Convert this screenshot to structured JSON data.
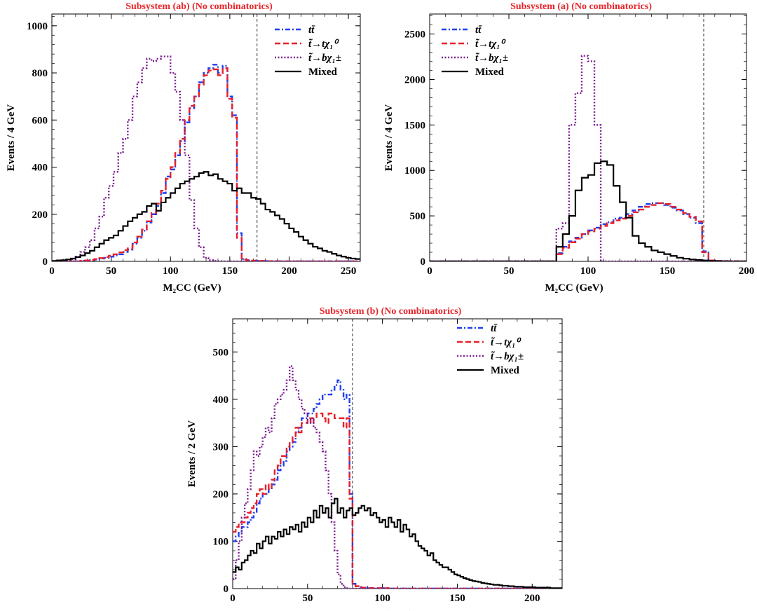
{
  "series_styles": [
    {
      "key": "tt",
      "label": "tt̄",
      "color": "#1f3ff0",
      "dash": "7,3,2,3"
    },
    {
      "key": "stop_chi0",
      "label": "t̃→tχ₁⁰",
      "color": "#e8202a",
      "dash": "8,4"
    },
    {
      "key": "stop_chipm",
      "label": "t̃→bχ₁±",
      "color": "#7b1d8f",
      "dash": "2,2.5"
    },
    {
      "key": "mixed",
      "label": "Mixed",
      "color": "#000000",
      "dash": ""
    }
  ],
  "chart_data": [
    {
      "type": "line",
      "title": "Subsystem (ab) (No combinatorics)",
      "xlabel": "M₂CC (GeV)",
      "ylabel": "Events / 4 GeV",
      "xlim": [
        0,
        260
      ],
      "ylim": [
        0,
        1050
      ],
      "xticks": [
        0,
        50,
        100,
        150,
        200,
        250
      ],
      "yticks": [
        0,
        200,
        400,
        600,
        800,
        1000
      ],
      "bin_width": 4,
      "endpoint": 173,
      "legend": "top-right",
      "series": [
        {
          "name": "tt̄",
          "values": [
            0,
            0,
            0,
            0,
            0,
            0,
            2,
            3,
            5,
            8,
            12,
            15,
            20,
            25,
            30,
            40,
            50,
            75,
            100,
            130,
            165,
            200,
            235,
            290,
            360,
            390,
            450,
            510,
            590,
            650,
            700,
            760,
            800,
            820,
            835,
            800,
            830,
            700,
            620,
            120,
            10,
            5,
            3,
            2,
            2,
            1,
            1,
            1,
            0,
            0,
            0,
            0,
            0,
            0,
            0,
            0,
            0,
            0,
            0,
            0,
            0,
            0,
            0,
            0,
            0
          ]
        },
        {
          "name": "t̃→tχ₁⁰",
          "values": [
            0,
            0,
            0,
            0,
            0,
            0,
            2,
            4,
            7,
            10,
            14,
            18,
            24,
            30,
            38,
            48,
            55,
            80,
            105,
            135,
            170,
            205,
            245,
            300,
            350,
            400,
            460,
            520,
            600,
            660,
            700,
            750,
            790,
            810,
            815,
            790,
            820,
            690,
            610,
            100,
            8,
            5,
            3,
            2,
            2,
            1,
            1,
            1,
            0,
            0,
            0,
            0,
            0,
            0,
            0,
            0,
            0,
            0,
            0,
            0,
            0,
            0,
            0,
            0,
            0
          ]
        },
        {
          "name": "t̃→bχ₁±",
          "values": [
            0,
            1,
            2,
            5,
            10,
            20,
            40,
            60,
            90,
            140,
            190,
            270,
            320,
            380,
            460,
            520,
            600,
            700,
            760,
            820,
            860,
            850,
            860,
            870,
            870,
            800,
            720,
            600,
            450,
            260,
            140,
            60,
            15,
            5,
            2,
            1,
            0,
            0,
            0,
            0,
            0,
            0,
            0,
            0,
            0,
            0,
            0,
            0,
            0,
            0,
            0,
            0,
            0,
            0,
            0,
            0,
            0,
            0,
            0,
            0,
            0,
            0,
            0,
            0,
            0
          ]
        },
        {
          "name": "Mixed",
          "values": [
            2,
            4,
            5,
            8,
            12,
            18,
            25,
            35,
            45,
            60,
            75,
            90,
            100,
            110,
            130,
            150,
            170,
            185,
            200,
            210,
            235,
            245,
            215,
            250,
            270,
            290,
            310,
            330,
            340,
            350,
            360,
            375,
            380,
            365,
            370,
            350,
            340,
            330,
            300,
            310,
            290,
            290,
            270,
            265,
            245,
            220,
            210,
            195,
            180,
            160,
            140,
            125,
            105,
            90,
            75,
            62,
            55,
            45,
            40,
            32,
            25,
            20,
            15,
            12,
            10
          ]
        }
      ]
    },
    {
      "type": "line",
      "title": "Subsystem (a) (No combinatorics)",
      "xlabel": "M₂CC (GeV)",
      "ylabel": "Events / 4 GeV",
      "xlim": [
        0,
        200
      ],
      "ylim": [
        0,
        2720
      ],
      "xticks": [
        0,
        50,
        100,
        150,
        200
      ],
      "yticks": [
        0,
        500,
        1000,
        1500,
        2000,
        2500
      ],
      "bin_width": 4,
      "endpoint": 173,
      "legend": "top-left",
      "series": [
        {
          "name": "tt̄",
          "values": [
            0,
            0,
            0,
            0,
            0,
            0,
            0,
            0,
            0,
            0,
            0,
            0,
            0,
            0,
            0,
            0,
            0,
            0,
            0,
            0,
            90,
            160,
            220,
            260,
            300,
            340,
            370,
            410,
            430,
            470,
            480,
            520,
            560,
            600,
            630,
            640,
            640,
            620,
            590,
            560,
            520,
            480,
            420,
            110,
            10,
            5,
            3,
            2,
            1,
            0
          ]
        },
        {
          "name": "t̃→tχ₁⁰",
          "values": [
            0,
            0,
            0,
            0,
            0,
            0,
            0,
            0,
            0,
            0,
            0,
            0,
            0,
            0,
            0,
            0,
            0,
            0,
            0,
            0,
            80,
            150,
            210,
            250,
            300,
            330,
            360,
            390,
            420,
            450,
            470,
            500,
            540,
            570,
            600,
            620,
            640,
            630,
            600,
            570,
            530,
            490,
            440,
            100,
            10,
            5,
            3,
            2,
            1,
            0
          ]
        },
        {
          "name": "t̃→bχ₁±",
          "values": [
            0,
            0,
            0,
            0,
            0,
            0,
            0,
            0,
            0,
            0,
            0,
            0,
            0,
            0,
            0,
            0,
            0,
            0,
            0,
            0,
            360,
            420,
            1500,
            1850,
            2260,
            2200,
            1500,
            0,
            0,
            0,
            0,
            0,
            0,
            0,
            0,
            0,
            0,
            0,
            0,
            0,
            0,
            0,
            0,
            0,
            0,
            0,
            0,
            0,
            0,
            0
          ]
        },
        {
          "name": "Mixed",
          "values": [
            0,
            0,
            0,
            0,
            0,
            0,
            0,
            0,
            0,
            0,
            0,
            0,
            0,
            0,
            0,
            0,
            0,
            0,
            0,
            0,
            160,
            300,
            500,
            780,
            920,
            950,
            1080,
            1100,
            1060,
            830,
            650,
            480,
            280,
            200,
            160,
            120,
            100,
            80,
            60,
            40,
            30,
            20,
            15,
            10,
            5,
            2,
            0,
            0,
            0,
            0
          ]
        }
      ]
    },
    {
      "type": "line",
      "title": "Subsystem (b) (No combinatorics)",
      "xlabel": "M₂CC (GeV)",
      "ylabel": "Events / 2 GeV",
      "xlim": [
        0,
        220
      ],
      "ylim": [
        0,
        570
      ],
      "xticks": [
        0,
        50,
        100,
        150,
        200
      ],
      "yticks": [
        0,
        100,
        200,
        300,
        400,
        500
      ],
      "bin_width": 2,
      "endpoint": 80,
      "legend": "top-right",
      "series": [
        {
          "name": "tt̄",
          "values": [
            100,
            110,
            120,
            130,
            130,
            140,
            150,
            160,
            180,
            190,
            200,
            200,
            210,
            220,
            230,
            250,
            260,
            270,
            290,
            300,
            310,
            330,
            340,
            360,
            360,
            370,
            370,
            380,
            390,
            400,
            410,
            410,
            410,
            420,
            430,
            440,
            420,
            400,
            410,
            200,
            10,
            5,
            3,
            2,
            2,
            1,
            1,
            1,
            1,
            1,
            1,
            1,
            0,
            0,
            0,
            0,
            0,
            0,
            0,
            0,
            0,
            0,
            0,
            0,
            0,
            0,
            0,
            0,
            0,
            0,
            0,
            0,
            0,
            0,
            0,
            0,
            0,
            0,
            0,
            0,
            0,
            0,
            0,
            0,
            0,
            0,
            0,
            0,
            0,
            0,
            0,
            0,
            0,
            0,
            0,
            0,
            0,
            0,
            0,
            0,
            0,
            0,
            0,
            0,
            0,
            0,
            0,
            0,
            0,
            0
          ]
        },
        {
          "name": "t̃→tχ₁⁰",
          "values": [
            120,
            130,
            140,
            140,
            150,
            160,
            170,
            180,
            200,
            210,
            200,
            220,
            210,
            230,
            250,
            260,
            280,
            280,
            300,
            310,
            320,
            340,
            330,
            350,
            350,
            360,
            350,
            360,
            370,
            370,
            360,
            350,
            370,
            370,
            360,
            360,
            360,
            340,
            360,
            190,
            10,
            5,
            3,
            2,
            2,
            1,
            1,
            1,
            1,
            1,
            1,
            1,
            0,
            0,
            0,
            0,
            0,
            0,
            0,
            0,
            0,
            0,
            0,
            0,
            0,
            0,
            0,
            0,
            0,
            0,
            0,
            0,
            0,
            0,
            0,
            0,
            0,
            0,
            0,
            0,
            0,
            0,
            0,
            0,
            0,
            0,
            0,
            0,
            0,
            0,
            0,
            0,
            0,
            0,
            0,
            0,
            0,
            0,
            0,
            0,
            0,
            0,
            0,
            0,
            0,
            0,
            0,
            0,
            0,
            0
          ]
        },
        {
          "name": "t̃→bχ₁±",
          "values": [
            20,
            60,
            100,
            150,
            180,
            210,
            250,
            290,
            280,
            300,
            320,
            340,
            330,
            360,
            390,
            400,
            410,
            420,
            440,
            470,
            440,
            420,
            400,
            380,
            370,
            350,
            360,
            340,
            330,
            310,
            290,
            250,
            200,
            140,
            80,
            30,
            10,
            3,
            1,
            0,
            0,
            0,
            0,
            0,
            0,
            0,
            0,
            0,
            0,
            0,
            0,
            0,
            0,
            0,
            0,
            0,
            0,
            0,
            0,
            0,
            0,
            0,
            0,
            0,
            0,
            0,
            0,
            0,
            0,
            0,
            0,
            0,
            0,
            0,
            0,
            0,
            0,
            0,
            0,
            0,
            0,
            0,
            0,
            0,
            0,
            0,
            0,
            0,
            0,
            0,
            0,
            0,
            0,
            0,
            0,
            0,
            0,
            0,
            0,
            0,
            0,
            0,
            0,
            0,
            0,
            0,
            0,
            0,
            0,
            0
          ]
        },
        {
          "name": "Mixed",
          "values": [
            35,
            45,
            40,
            55,
            60,
            70,
            80,
            75,
            95,
            85,
            100,
            110,
            95,
            110,
            105,
            120,
            110,
            125,
            115,
            130,
            125,
            135,
            120,
            140,
            130,
            150,
            140,
            165,
            150,
            175,
            160,
            170,
            150,
            180,
            190,
            160,
            170,
            150,
            165,
            170,
            155,
            160,
            170,
            175,
            165,
            170,
            155,
            160,
            150,
            140,
            145,
            130,
            150,
            140,
            130,
            145,
            120,
            135,
            125,
            110,
            115,
            100,
            90,
            85,
            80,
            70,
            75,
            60,
            55,
            50,
            45,
            45,
            40,
            35,
            30,
            28,
            25,
            22,
            20,
            18,
            16,
            15,
            14,
            12,
            11,
            10,
            9,
            8,
            8,
            7,
            6,
            6,
            5,
            5,
            4,
            4,
            4,
            3,
            3,
            3,
            3,
            2,
            2,
            2,
            2,
            2,
            1,
            1,
            1,
            1
          ]
        }
      ]
    }
  ]
}
